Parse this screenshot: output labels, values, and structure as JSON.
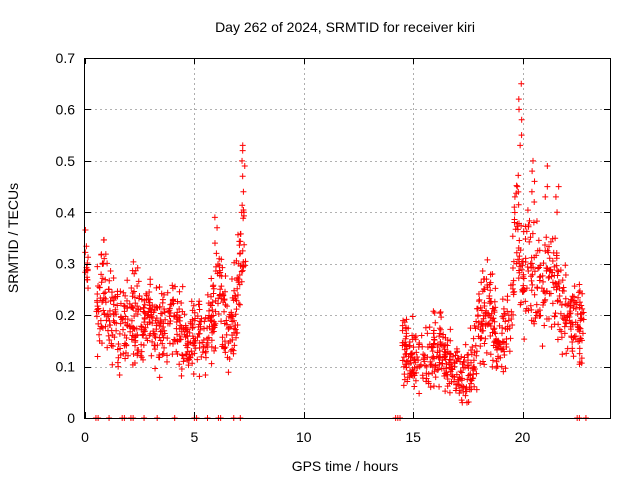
{
  "chart_data": {
    "type": "scatter",
    "title": "Day 262 of 2024, SRMTID for receiver kiri",
    "xlabel": "GPS time / hours",
    "ylabel": "SRMTID / TECUs",
    "xlim": [
      0,
      24
    ],
    "ylim": [
      0,
      0.7
    ],
    "x_ticks": [
      0,
      5,
      10,
      15,
      20
    ],
    "y_ticks": [
      0,
      0.1,
      0.2,
      0.3,
      0.4,
      0.5,
      0.6,
      0.7
    ],
    "x_tick_labels": [
      "0",
      "5",
      "10",
      "15",
      "20"
    ],
    "y_tick_labels": [
      "0",
      "0.1",
      "0.2",
      "0.3",
      "0.4",
      "0.5",
      "0.6",
      "0.7"
    ],
    "grid": true,
    "marker": "plus",
    "marker_color": "#ff0000",
    "series": [
      {
        "name": "SRMTID",
        "segments": [
          {
            "x_start": 0.0,
            "x_end": 0.15,
            "profile": [
              [
                0.0,
                0.32
              ],
              [
                0.1,
                0.3
              ]
            ]
          },
          {
            "x_start": 0.5,
            "x_end": 7.35,
            "profile": [
              [
                0.5,
                0.21
              ],
              [
                0.8,
                0.25
              ],
              [
                1.2,
                0.2
              ],
              [
                1.6,
                0.17
              ],
              [
                2.0,
                0.2
              ],
              [
                2.5,
                0.19
              ],
              [
                3.0,
                0.19
              ],
              [
                3.5,
                0.17
              ],
              [
                4.0,
                0.19
              ],
              [
                4.5,
                0.16
              ],
              [
                5.0,
                0.16
              ],
              [
                5.5,
                0.14
              ],
              [
                5.9,
                0.22
              ],
              [
                6.2,
                0.26
              ],
              [
                6.5,
                0.15
              ],
              [
                6.9,
                0.22
              ],
              [
                7.2,
                0.35
              ],
              [
                7.35,
                0.3
              ]
            ]
          },
          {
            "x_start": 14.5,
            "x_end": 22.8,
            "profile": [
              [
                14.5,
                0.14
              ],
              [
                14.9,
                0.11
              ],
              [
                15.3,
                0.12
              ],
              [
                15.8,
                0.12
              ],
              [
                16.3,
                0.13
              ],
              [
                16.7,
                0.1
              ],
              [
                17.2,
                0.08
              ],
              [
                17.6,
                0.1
              ],
              [
                18.0,
                0.17
              ],
              [
                18.4,
                0.22
              ],
              [
                18.8,
                0.16
              ],
              [
                19.2,
                0.15
              ],
              [
                19.5,
                0.22
              ],
              [
                19.7,
                0.38
              ],
              [
                20.0,
                0.27
              ],
              [
                20.3,
                0.3
              ],
              [
                20.6,
                0.25
              ],
              [
                21.0,
                0.26
              ],
              [
                21.4,
                0.28
              ],
              [
                21.8,
                0.22
              ],
              [
                22.2,
                0.2
              ],
              [
                22.6,
                0.18
              ],
              [
                22.8,
                0.17
              ]
            ]
          }
        ],
        "spikes": [
          {
            "x": 7.25,
            "values": [
              0.53,
              0.52,
              0.5,
              0.49,
              0.47,
              0.44,
              0.4
            ]
          },
          {
            "x": 6.0,
            "values": [
              0.39,
              0.37,
              0.34,
              0.32
            ]
          },
          {
            "x": 19.9,
            "values": [
              0.65,
              0.62,
              0.6,
              0.58,
              0.55,
              0.53
            ]
          },
          {
            "x": 20.5,
            "values": [
              0.5,
              0.48,
              0.46,
              0.44,
              0.42
            ]
          },
          {
            "x": 21.1,
            "values": [
              0.49,
              0.45,
              0.43
            ]
          },
          {
            "x": 21.6,
            "values": [
              0.45,
              0.43,
              0.4
            ]
          },
          {
            "x": 19.7,
            "values": [
              0.45,
              0.43,
              0.41
            ]
          }
        ],
        "zero_points_x": [
          0.5,
          0.6,
          1.1,
          1.7,
          1.8,
          2.1,
          2.2,
          2.7,
          3.3,
          4.1,
          5.0,
          5.1,
          5.6,
          6.1,
          6.2,
          6.8,
          7.1,
          14.2,
          14.3,
          14.4,
          22.5,
          22.6,
          22.9
        ]
      }
    ]
  }
}
